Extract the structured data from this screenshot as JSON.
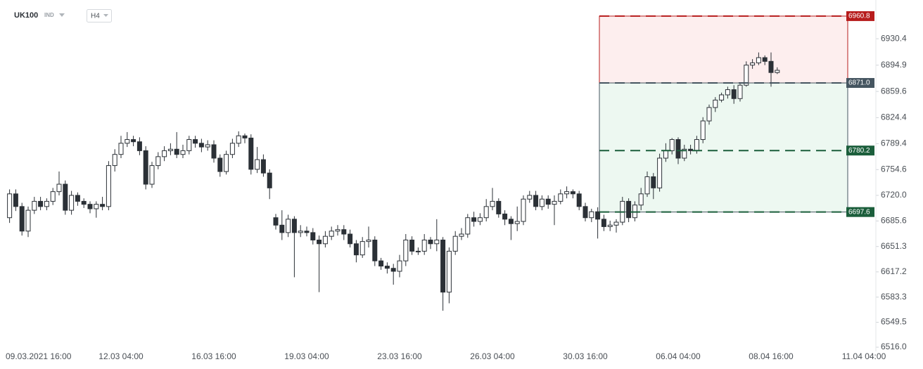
{
  "chart_data": {
    "type": "candlestick",
    "symbol": "UK100",
    "instrument_type": "IND",
    "timeframe": "H4",
    "categories": [
      null,
      null,
      null,
      "09.03.2021 16:00",
      null,
      null,
      null,
      null,
      null,
      null,
      null,
      null,
      null,
      null,
      null,
      null,
      null,
      null,
      "12.03 04:00",
      null,
      null,
      null,
      null,
      null,
      null,
      null,
      null,
      null,
      null,
      null,
      null,
      null,
      null,
      "16.03 16:00",
      null,
      null,
      null,
      null,
      null,
      null,
      null,
      null,
      null,
      null,
      null,
      null,
      null,
      null,
      "19.03 04:00",
      null,
      null,
      null,
      null,
      null,
      null,
      null,
      null,
      null,
      null,
      null,
      null,
      null,
      null,
      "23.03 16:00",
      null,
      null,
      null,
      null,
      null,
      null,
      null,
      null,
      null,
      null,
      null,
      null,
      null,
      null,
      "26.03 04:00",
      null,
      null,
      null,
      null,
      null,
      null,
      null,
      null,
      null,
      null,
      null,
      null,
      null,
      null,
      "30.03 16:00",
      null,
      null,
      null,
      null,
      null,
      null,
      null,
      null,
      null,
      null,
      null,
      null,
      null,
      null,
      "06.04 04:00",
      null,
      null,
      null,
      null,
      null,
      null,
      null,
      null,
      null,
      null,
      null,
      null,
      null,
      null,
      "08.04 16:00",
      null,
      null,
      null,
      null,
      null,
      null,
      null,
      null,
      null,
      null,
      null,
      null,
      null,
      null,
      "11.04 04:00"
    ],
    "open": [
      6690,
      6722,
      6705,
      6672,
      6700,
      6712,
      6705,
      6712,
      6725,
      6735,
      6700,
      6720,
      6712,
      6708,
      6702,
      6708,
      6705,
      6760,
      6775,
      6790,
      6795,
      6792,
      6780,
      6735,
      6760,
      6772,
      6780,
      6782,
      6775,
      6780,
      6795,
      6790,
      6785,
      6788,
      6770,
      6752,
      6775,
      6790,
      6800,
      6797,
      6755,
      6768,
      6750,
      6690,
      6680,
      6670,
      6688,
      6670,
      6672,
      6670,
      6660,
      6655,
      6665,
      6672,
      6674,
      6668,
      6655,
      6640,
      6658,
      6660,
      6632,
      6625,
      6622,
      6618,
      6632,
      6660,
      6645,
      6645,
      6660,
      6655,
      6660,
      6590,
      6645,
      6665,
      6668,
      6690,
      6685,
      6690,
      6705,
      6712,
      6695,
      6688,
      6682,
      6685,
      6715,
      6720,
      6705,
      6715,
      6708,
      6712,
      6722,
      6725,
      6722,
      6705,
      6690,
      6698,
      6688,
      6678,
      6680,
      6684,
      6712,
      6690,
      6707,
      6722,
      6745,
      6730,
      6770,
      6780,
      6795,
      6770,
      6782,
      6780,
      6795,
      6820,
      6838,
      6848,
      6855,
      6862,
      6850,
      6868,
      6895,
      6898,
      6905,
      6900,
      6885,
      null,
      null,
      null,
      null,
      null,
      null,
      null,
      null,
      null,
      null,
      null,
      null,
      null,
      null
    ],
    "high": [
      6728,
      6728,
      6710,
      6705,
      6718,
      6718,
      6716,
      6730,
      6752,
      6740,
      6726,
      6724,
      6716,
      6712,
      6712,
      6718,
      6766,
      6782,
      6800,
      6805,
      6800,
      6798,
      6786,
      6765,
      6778,
      6786,
      6790,
      6805,
      6788,
      6800,
      6800,
      6796,
      6794,
      6794,
      6775,
      6780,
      6796,
      6806,
      6803,
      6802,
      6785,
      6775,
      6755,
      6695,
      6700,
      6694,
      6692,
      6680,
      6678,
      6676,
      6666,
      6672,
      6678,
      6680,
      6680,
      6674,
      6660,
      6664,
      6678,
      6665,
      6636,
      6630,
      6628,
      6640,
      6668,
      6665,
      6650,
      6668,
      6664,
      6688,
      6664,
      6650,
      6672,
      6676,
      6695,
      6698,
      6696,
      6715,
      6730,
      6716,
      6700,
      6692,
      6705,
      6720,
      6726,
      6726,
      6720,
      6720,
      6720,
      6728,
      6732,
      6728,
      6726,
      6710,
      6702,
      6704,
      6694,
      6686,
      6688,
      6718,
      6716,
      6712,
      6730,
      6752,
      6750,
      6776,
      6790,
      6797,
      6798,
      6788,
      6788,
      6800,
      6825,
      6842,
      6852,
      6858,
      6866,
      6868,
      6870,
      6900,
      6903,
      6912,
      6908,
      6912,
      6892,
      null,
      null,
      null,
      null,
      null,
      null,
      null,
      null,
      null,
      null,
      null,
      null,
      null,
      null
    ],
    "low": [
      6683,
      6699,
      6666,
      6664,
      6695,
      6700,
      6700,
      6707,
      6720,
      6694,
      6694,
      6706,
      6703,
      6696,
      6690,
      6700,
      6700,
      6752,
      6770,
      6785,
      6786,
      6774,
      6728,
      6730,
      6755,
      6766,
      6774,
      6770,
      6770,
      6775,
      6784,
      6778,
      6780,
      6764,
      6745,
      6748,
      6770,
      6785,
      6790,
      6748,
      6750,
      6745,
      6715,
      6674,
      6660,
      6664,
      6610,
      6664,
      6665,
      6654,
      6590,
      6650,
      6660,
      6666,
      6660,
      6650,
      6630,
      6636,
      6650,
      6625,
      6620,
      6615,
      6600,
      6610,
      6625,
      6640,
      6640,
      6640,
      6648,
      6645,
      6565,
      6575,
      6640,
      6660,
      6663,
      6678,
      6680,
      6685,
      6700,
      6690,
      6680,
      6660,
      6672,
      6680,
      6710,
      6700,
      6700,
      6702,
      6680,
      6708,
      6716,
      6716,
      6700,
      6685,
      6684,
      6662,
      6672,
      6672,
      6670,
      6680,
      6684,
      6685,
      6700,
      6718,
      6715,
      6725,
      6765,
      6775,
      6762,
      6766,
      6775,
      6776,
      6790,
      6815,
      6832,
      6845,
      6850,
      6843,
      6846,
      6866,
      6890,
      6895,
      6895,
      6866,
      6883,
      null,
      null,
      null,
      null,
      null,
      null,
      null,
      null,
      null,
      null,
      null,
      null,
      null,
      null
    ],
    "close": [
      6722,
      6705,
      6672,
      6700,
      6712,
      6705,
      6712,
      6725,
      6735,
      6700,
      6720,
      6712,
      6708,
      6702,
      6708,
      6705,
      6760,
      6775,
      6790,
      6795,
      6792,
      6780,
      6735,
      6760,
      6772,
      6780,
      6782,
      6775,
      6780,
      6795,
      6790,
      6785,
      6788,
      6770,
      6752,
      6775,
      6790,
      6800,
      6797,
      6755,
      6768,
      6750,
      6730,
      6680,
      6670,
      6688,
      6670,
      6672,
      6670,
      6660,
      6655,
      6665,
      6672,
      6674,
      6668,
      6655,
      6640,
      6658,
      6660,
      6632,
      6625,
      6622,
      6618,
      6632,
      6660,
      6645,
      6645,
      6660,
      6655,
      6660,
      6590,
      6645,
      6665,
      6668,
      6690,
      6685,
      6690,
      6705,
      6712,
      6695,
      6688,
      6682,
      6685,
      6715,
      6720,
      6705,
      6715,
      6708,
      6712,
      6722,
      6725,
      6722,
      6705,
      6690,
      6698,
      6688,
      6678,
      6680,
      6684,
      6712,
      6690,
      6707,
      6722,
      6745,
      6730,
      6770,
      6780,
      6795,
      6770,
      6782,
      6780,
      6795,
      6820,
      6838,
      6848,
      6855,
      6862,
      6850,
      6868,
      6895,
      6898,
      6905,
      6900,
      6885,
      6888,
      null,
      null,
      null,
      null,
      null,
      null,
      null,
      null,
      null,
      null,
      null,
      null,
      null,
      null
    ],
    "up_color": "#ffffff",
    "down_color": "#2b3036",
    "wick_color": "#2b3036",
    "ylim": [
      6516.0,
      6973.0
    ],
    "yticks": [
      {
        "value": 6516.0,
        "label": "6516.0"
      },
      6549.5,
      6583.3,
      6617.2,
      6651.3,
      6685.6,
      {
        "value": 6720.0,
        "label": "6720.0"
      },
      6754.6,
      6789.4,
      6824.4,
      6859.6,
      6894.9,
      6930.4
    ],
    "levels": [
      6960.8,
      {
        "value": 6871.0,
        "label": "6871.0"
      },
      6780.2,
      6697.6
    ],
    "level_colors": [
      "#b71c1c",
      "#455560",
      "#1b5e3b",
      "#1b5e3b"
    ],
    "zone_colors": [
      "#fdeeee",
      "#edf8f1"
    ]
  }
}
